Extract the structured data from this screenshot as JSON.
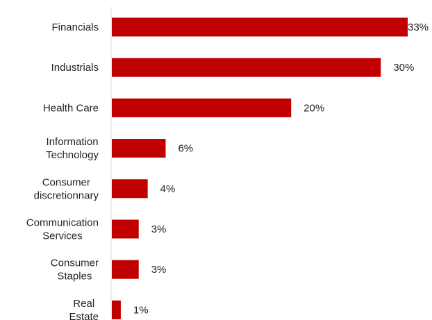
{
  "chart_data": {
    "type": "bar",
    "orientation": "horizontal",
    "categories": [
      [
        "Financials"
      ],
      [
        "Industrials"
      ],
      [
        "Health Care"
      ],
      [
        "Information",
        "Technology"
      ],
      [
        "Consumer",
        "discretionnary"
      ],
      [
        "Communication",
        "Services"
      ],
      [
        "Consumer",
        "Staples"
      ],
      [
        "Real",
        "Estate"
      ]
    ],
    "values": [
      33,
      30,
      20,
      6,
      4,
      3,
      3,
      1
    ],
    "value_labels": [
      "33%",
      "30%",
      "20%",
      "6%",
      "4%",
      "3%",
      "3%",
      "1%"
    ],
    "unit": "%",
    "xlim": [
      0,
      33
    ],
    "bar_color": "#c00000",
    "grid": false,
    "legend": "none"
  }
}
